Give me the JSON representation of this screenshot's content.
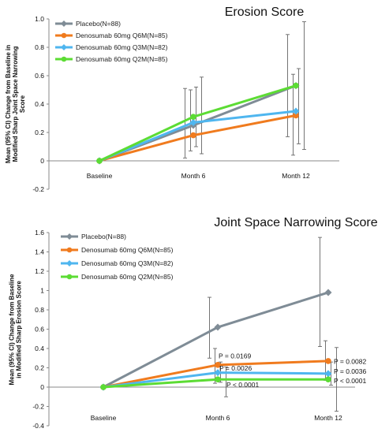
{
  "chart_data": [
    {
      "type": "line",
      "title": "Erosion Score",
      "ylabel": [
        "Mean (95% CI) Change from Baseline in",
        "Modified Sharp Joint Space Narrowing",
        "Score"
      ],
      "categories": [
        "Baseline",
        "Month 6",
        "Month 12"
      ],
      "ylim": [
        -0.2,
        1.0
      ],
      "yticks": [
        "-0.2",
        "0",
        "0.2",
        "0.4",
        "0.6",
        "0.8",
        "1.0"
      ],
      "legend_position": "top-left",
      "series": [
        {
          "name": "Placebo(N=88)",
          "color": "#7f8c96",
          "marker": "diamond",
          "values": [
            0,
            0.25,
            0.53
          ],
          "ci_low": [
            0,
            0.02,
            0.17
          ],
          "ci_high": [
            0,
            0.51,
            0.89
          ]
        },
        {
          "name": "Denosumab 60mg Q6M(N=85)",
          "color": "#f07b1e",
          "marker": "circle",
          "values": [
            0,
            0.18,
            0.32
          ],
          "ci_low": [
            0,
            0.07,
            0.04
          ],
          "ci_high": [
            0,
            0.5,
            0.61
          ]
        },
        {
          "name": "Denosumab 60mg Q3M(N=82)",
          "color": "#4fb6ef",
          "marker": "diamond",
          "values": [
            0,
            0.27,
            0.35
          ],
          "ci_low": [
            0,
            0.1,
            0.12
          ],
          "ci_high": [
            0,
            0.52,
            0.65
          ]
        },
        {
          "name": "Denosumab 60mg Q2M(N=85)",
          "color": "#5cdc34",
          "marker": "circle",
          "values": [
            0,
            0.31,
            0.53
          ],
          "ci_low": [
            0,
            0.05,
            0.08
          ],
          "ci_high": [
            0,
            0.59,
            0.98
          ]
        }
      ],
      "annotations": []
    },
    {
      "type": "line",
      "title": "Joint Space Narrowing Score",
      "ylabel": [
        "Mean (95% CI) Change from Baseline",
        "in Modified Sharp Erosion Score"
      ],
      "categories": [
        "Baseline",
        "Month 6",
        "Month 12"
      ],
      "ylim": [
        -0.4,
        1.6
      ],
      "yticks": [
        "-0.4",
        "-0.2",
        "0",
        "0.2",
        "0.4",
        "0.6",
        "0.8",
        "1",
        "1.2",
        "1.4",
        "1.6"
      ],
      "legend_position": "top-left",
      "series": [
        {
          "name": "Placebo(N=88)",
          "color": "#7f8c96",
          "marker": "diamond",
          "values": [
            0,
            0.62,
            0.98
          ],
          "ci_low": [
            0,
            0.3,
            0.42
          ],
          "ci_high": [
            0,
            0.93,
            1.55
          ]
        },
        {
          "name": "Denosumab 60mg Q6M(N=85)",
          "color": "#f07b1e",
          "marker": "circle",
          "values": [
            0,
            0.23,
            0.27
          ],
          "ci_low": [
            0,
            0.04,
            0.07
          ],
          "ci_high": [
            0,
            0.4,
            0.48
          ]
        },
        {
          "name": "Denosumab 60mg Q3M(N=82)",
          "color": "#4fb6ef",
          "marker": "diamond",
          "values": [
            0,
            0.15,
            0.14
          ],
          "ci_low": [
            0,
            0.05,
            0.02
          ],
          "ci_high": [
            0,
            0.26,
            0.26
          ]
        },
        {
          "name": "Denosumab 60mg Q2M(N=85)",
          "color": "#5cdc34",
          "marker": "circle",
          "values": [
            0,
            0.08,
            0.08
          ],
          "ci_low": [
            0,
            -0.1,
            -0.25
          ],
          "ci_high": [
            0,
            0.21,
            0.41
          ]
        }
      ],
      "annotations": [
        {
          "text": "P = 0.0169",
          "category": 1,
          "y": 0.3
        },
        {
          "text": "P = 0.0026",
          "category": 1,
          "y": 0.17
        },
        {
          "text": "P < 0.0001",
          "category": 1,
          "y": 0.0
        },
        {
          "text": "P = 0.0082",
          "category": 2,
          "y": 0.24
        },
        {
          "text": "P = 0.0036",
          "category": 2,
          "y": 0.14
        },
        {
          "text": "P < 0.0001",
          "category": 2,
          "y": 0.04
        }
      ]
    }
  ]
}
